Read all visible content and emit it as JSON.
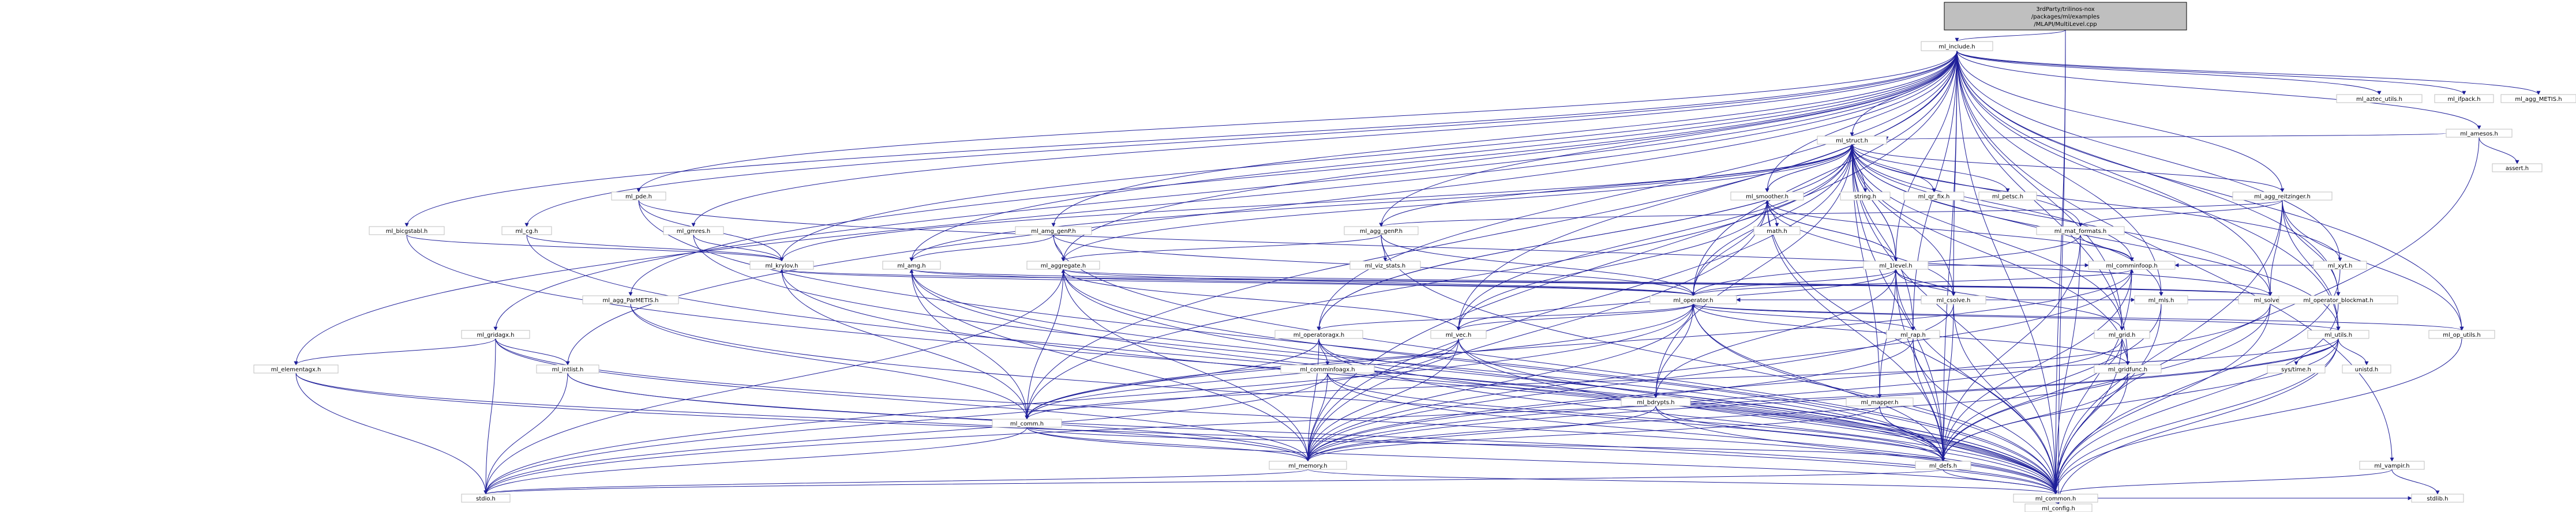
{
  "root": "3rdParty/trilinos-nox/packages/ml/examples/MLAPI/MultiLevel.cpp",
  "colors": {
    "edge": "#1f1f99",
    "node_border": "#bfbfbf",
    "root_fill": "#bfbfbf",
    "background": "#ffffff"
  },
  "nodes": [
    {
      "id": "root",
      "label": "3rdParty/trilinos-nox\n/packages/ml/examples\n/MLAPI/MultiLevel.cpp"
    },
    {
      "id": "ml_include",
      "label": "ml_include.h"
    },
    {
      "id": "ml_config",
      "label": "ml_config.h"
    },
    {
      "id": "ml_common",
      "label": "ml_common.h"
    },
    {
      "id": "ml_defs",
      "label": "ml_defs.h"
    },
    {
      "id": "ml_memory",
      "label": "ml_memory.h"
    },
    {
      "id": "ml_comm",
      "label": "ml_comm.h"
    },
    {
      "id": "stdio",
      "label": "stdio.h"
    },
    {
      "id": "stdlib",
      "label": "stdlib.h"
    },
    {
      "id": "ml_struct",
      "label": "ml_struct.h"
    },
    {
      "id": "ml_operator",
      "label": "ml_operator.h"
    },
    {
      "id": "ml_1level",
      "label": "ml_1level.h"
    },
    {
      "id": "ml_smoother",
      "label": "ml_smoother.h"
    },
    {
      "id": "ml_vec",
      "label": "ml_vec.h"
    },
    {
      "id": "ml_utils",
      "label": "ml_utils.h"
    },
    {
      "id": "ml_csolve",
      "label": "ml_csolve.h"
    },
    {
      "id": "ml_grid",
      "label": "ml_grid.h"
    },
    {
      "id": "ml_gridfunc",
      "label": "ml_gridfunc.h"
    },
    {
      "id": "ml_rap",
      "label": "ml_rap.h"
    },
    {
      "id": "ml_mls",
      "label": "ml_mls.h"
    },
    {
      "id": "ml_solver",
      "label": "ml_solver.h"
    },
    {
      "id": "ml_mapper",
      "label": "ml_mapper.h"
    },
    {
      "id": "ml_bdrypts",
      "label": "ml_bdrypts.h"
    },
    {
      "id": "ml_operatoragx",
      "label": "ml_operatoragx.h"
    },
    {
      "id": "ml_comminfoagx",
      "label": "ml_comminfoagx.h"
    },
    {
      "id": "ml_comminfoop",
      "label": "ml_comminfoop.h"
    },
    {
      "id": "ml_mat_formats",
      "label": "ml_mat_formats.h"
    },
    {
      "id": "ml_amg",
      "label": "ml_amg.h"
    },
    {
      "id": "ml_aggregate",
      "label": "ml_aggregate.h"
    },
    {
      "id": "ml_amg_genP",
      "label": "ml_amg_genP.h"
    },
    {
      "id": "ml_agg_genP",
      "label": "ml_agg_genP.h"
    },
    {
      "id": "ml_vcl_stats",
      "label": "ml_viz_stats.h"
    },
    {
      "id": "ml_krylov",
      "label": "ml_krylov.h"
    },
    {
      "id": "ml_pde",
      "label": "ml_pde.h"
    },
    {
      "id": "ml_cg",
      "label": "ml_cg.h"
    },
    {
      "id": "ml_gmres",
      "label": "ml_gmres.h"
    },
    {
      "id": "ml_bicgstabl",
      "label": "ml_bicgstabl.h"
    },
    {
      "id": "ml_agg_ParMETIS",
      "label": "ml_agg_ParMETIS.h"
    },
    {
      "id": "ml_gridagx",
      "label": "ml_gridagx.h"
    },
    {
      "id": "ml_elementagx",
      "label": "ml_elementagx.h"
    },
    {
      "id": "ml_intlist",
      "label": "ml_intlist.h"
    },
    {
      "id": "string",
      "label": "string.h"
    },
    {
      "id": "math",
      "label": "math.h"
    },
    {
      "id": "ml_qr_fix",
      "label": "ml_qr_fix.h"
    },
    {
      "id": "ml_petsc",
      "label": "ml_petsc.h"
    },
    {
      "id": "ml_xyt",
      "label": "ml_xyt.h"
    },
    {
      "id": "ml_agg_reitzinger",
      "label": "ml_agg_reitzinger.h"
    },
    {
      "id": "ml_operator_blockmat",
      "label": "ml_operator_blockmat.h"
    },
    {
      "id": "ml_op_utils",
      "label": "ml_op_utils.h"
    },
    {
      "id": "ml_aztec_utils",
      "label": "ml_aztec_utils.h"
    },
    {
      "id": "ml_ifpack",
      "label": "ml_ifpack.h"
    },
    {
      "id": "ml_agg_METIS",
      "label": "ml_agg_METIS.h"
    },
    {
      "id": "ml_amesos",
      "label": "ml_amesos.h"
    },
    {
      "id": "assert",
      "label": "assert.h"
    },
    {
      "id": "ml_vampir",
      "label": "ml_vampir.h"
    },
    {
      "id": "sys_time",
      "label": "sys/time.h"
    },
    {
      "id": "unistd",
      "label": "unistd.h"
    }
  ],
  "edges": [
    [
      "root",
      "ml_include"
    ],
    [
      "root",
      "ml_config"
    ],
    [
      "root",
      "ml_common"
    ],
    [
      "ml_include",
      "ml_common"
    ],
    [
      "ml_include",
      "ml_defs"
    ],
    [
      "ml_include",
      "ml_memory"
    ],
    [
      "ml_include",
      "ml_comm"
    ],
    [
      "ml_include",
      "ml_struct"
    ],
    [
      "ml_include",
      "ml_operator"
    ],
    [
      "ml_include",
      "ml_1level"
    ],
    [
      "ml_include",
      "ml_vec"
    ],
    [
      "ml_include",
      "ml_utils"
    ],
    [
      "ml_include",
      "ml_solver"
    ],
    [
      "ml_include",
      "ml_amg"
    ],
    [
      "ml_include",
      "ml_aggregate"
    ],
    [
      "ml_include",
      "ml_amg_genP"
    ],
    [
      "ml_include",
      "ml_agg_genP"
    ],
    [
      "ml_include",
      "ml_krylov"
    ],
    [
      "ml_include",
      "ml_pde"
    ],
    [
      "ml_include",
      "ml_cg"
    ],
    [
      "ml_include",
      "ml_gmres"
    ],
    [
      "ml_include",
      "ml_bicgstabl"
    ],
    [
      "ml_include",
      "ml_agg_ParMETIS"
    ],
    [
      "ml_include",
      "ml_gridagx"
    ],
    [
      "ml_include",
      "ml_elementagx"
    ],
    [
      "ml_include",
      "ml_intlist"
    ],
    [
      "ml_include",
      "ml_grid"
    ],
    [
      "ml_include",
      "ml_gridfunc"
    ],
    [
      "ml_include",
      "ml_operatoragx"
    ],
    [
      "ml_include",
      "ml_xyt"
    ],
    [
      "ml_include",
      "ml_agg_reitzinger"
    ],
    [
      "ml_include",
      "ml_operator_blockmat"
    ],
    [
      "ml_include",
      "ml_op_utils"
    ],
    [
      "ml_include",
      "ml_aztec_utils"
    ],
    [
      "ml_include",
      "ml_ifpack"
    ],
    [
      "ml_include",
      "ml_agg_METIS"
    ],
    [
      "ml_include",
      "ml_amesos"
    ],
    [
      "ml_include",
      "ml_vampir"
    ],
    [
      "ml_include",
      "ml_mls"
    ],
    [
      "ml_include",
      "ml_rap"
    ],
    [
      "ml_include",
      "ml_smoother"
    ],
    [
      "ml_include",
      "ml_csolve"
    ],
    [
      "ml_common",
      "ml_config"
    ],
    [
      "ml_defs",
      "ml_common"
    ],
    [
      "ml_memory",
      "ml_common"
    ],
    [
      "ml_memory",
      "stdio"
    ],
    [
      "ml_comm",
      "ml_common"
    ],
    [
      "ml_comm",
      "ml_memory"
    ],
    [
      "ml_comm",
      "stdio"
    ],
    [
      "ml_comm",
      "ml_defs"
    ],
    [
      "ml_struct",
      "ml_common"
    ],
    [
      "ml_struct",
      "ml_defs"
    ],
    [
      "ml_struct",
      "ml_memory"
    ],
    [
      "ml_struct",
      "ml_comm"
    ],
    [
      "ml_struct",
      "ml_operator"
    ],
    [
      "ml_struct",
      "ml_1level"
    ],
    [
      "ml_struct",
      "ml_smoother"
    ],
    [
      "ml_struct",
      "ml_vec"
    ],
    [
      "ml_struct",
      "ml_utils"
    ],
    [
      "ml_struct",
      "ml_csolve"
    ],
    [
      "ml_struct",
      "ml_grid"
    ],
    [
      "ml_struct",
      "ml_gridfunc"
    ],
    [
      "ml_struct",
      "ml_rap"
    ],
    [
      "ml_struct",
      "ml_mls"
    ],
    [
      "ml_struct",
      "ml_solver"
    ],
    [
      "ml_struct",
      "ml_mapper"
    ],
    [
      "ml_struct",
      "ml_bdrypts"
    ],
    [
      "ml_struct",
      "ml_operatoragx"
    ],
    [
      "ml_struct",
      "ml_comminfoop"
    ],
    [
      "ml_struct",
      "ml_mat_formats"
    ],
    [
      "ml_struct",
      "string"
    ],
    [
      "ml_struct",
      "ml_qr_fix"
    ],
    [
      "ml_struct",
      "ml_petsc"
    ],
    [
      "ml_struct",
      "ml_krylov"
    ],
    [
      "ml_struct",
      "ml_amg"
    ],
    [
      "ml_struct",
      "ml_aggregate"
    ],
    [
      "ml_struct",
      "ml_agg_genP"
    ],
    [
      "ml_operator",
      "ml_common"
    ],
    [
      "ml_operator",
      "ml_defs"
    ],
    [
      "ml_operator",
      "ml_memory"
    ],
    [
      "ml_operator",
      "ml_comm"
    ],
    [
      "ml_operator",
      "ml_vec"
    ],
    [
      "ml_operator",
      "ml_bdrypts"
    ],
    [
      "ml_operator",
      "ml_operatoragx"
    ],
    [
      "ml_operator",
      "ml_comminfoop"
    ],
    [
      "ml_operator",
      "ml_gridfunc"
    ],
    [
      "ml_operator",
      "ml_mls"
    ],
    [
      "ml_operator",
      "ml_utils"
    ],
    [
      "ml_operator",
      "ml_op_utils"
    ],
    [
      "ml_operator",
      "stdio"
    ],
    [
      "ml_1level",
      "ml_common"
    ],
    [
      "ml_1level",
      "ml_defs"
    ],
    [
      "ml_1level",
      "ml_operator"
    ],
    [
      "ml_1level",
      "ml_smoother"
    ],
    [
      "ml_1level",
      "ml_csolve"
    ],
    [
      "ml_1level",
      "ml_grid"
    ],
    [
      "ml_1level",
      "ml_mapper"
    ],
    [
      "ml_1level",
      "ml_bdrypts"
    ],
    [
      "ml_1level",
      "ml_vec"
    ],
    [
      "ml_1level",
      "ml_comminfoop"
    ],
    [
      "ml_1level",
      "ml_struct"
    ],
    [
      "ml_smoother",
      "ml_common"
    ],
    [
      "ml_smoother",
      "ml_defs"
    ],
    [
      "ml_smoother",
      "ml_memory"
    ],
    [
      "ml_smoother",
      "ml_1level"
    ],
    [
      "ml_smoother",
      "ml_operator"
    ],
    [
      "ml_smoother",
      "ml_comminfoop"
    ],
    [
      "ml_smoother",
      "ml_csolve"
    ],
    [
      "ml_smoother",
      "math"
    ],
    [
      "ml_smoother",
      "ml_struct"
    ],
    [
      "ml_smoother",
      "ml_vec"
    ],
    [
      "ml_vec",
      "ml_common"
    ],
    [
      "ml_vec",
      "ml_memory"
    ],
    [
      "ml_vec",
      "ml_defs"
    ],
    [
      "ml_vec",
      "ml_comm"
    ],
    [
      "ml_vec",
      "stdio"
    ],
    [
      "ml_utils",
      "ml_common"
    ],
    [
      "ml_utils",
      "ml_defs"
    ],
    [
      "ml_utils",
      "ml_memory"
    ],
    [
      "ml_utils",
      "ml_comm"
    ],
    [
      "ml_utils",
      "sys_time"
    ],
    [
      "ml_utils",
      "unistd"
    ],
    [
      "ml_utils",
      "stdio"
    ],
    [
      "ml_utils",
      "ml_config"
    ],
    [
      "ml_csolve",
      "ml_common"
    ],
    [
      "ml_csolve",
      "ml_defs"
    ],
    [
      "ml_csolve",
      "ml_memory"
    ],
    [
      "ml_csolve",
      "ml_1level"
    ],
    [
      "ml_grid",
      "ml_common"
    ],
    [
      "ml_grid",
      "ml_defs"
    ],
    [
      "ml_grid",
      "ml_memory"
    ],
    [
      "ml_grid",
      "ml_gridfunc"
    ],
    [
      "ml_gridfunc",
      "ml_common"
    ],
    [
      "ml_gridfunc",
      "ml_defs"
    ],
    [
      "ml_gridfunc",
      "ml_memory"
    ],
    [
      "ml_rap",
      "ml_common"
    ],
    [
      "ml_rap",
      "ml_defs"
    ],
    [
      "ml_rap",
      "ml_memory"
    ],
    [
      "ml_rap",
      "ml_operator"
    ],
    [
      "ml_mls",
      "ml_common"
    ],
    [
      "ml_mls",
      "ml_defs"
    ],
    [
      "ml_mls",
      "ml_operator"
    ],
    [
      "ml_solver",
      "ml_common"
    ],
    [
      "ml_solver",
      "ml_defs"
    ],
    [
      "ml_solver",
      "ml_memory"
    ],
    [
      "ml_mapper",
      "ml_common"
    ],
    [
      "ml_mapper",
      "ml_defs"
    ],
    [
      "ml_mapper",
      "ml_memory"
    ],
    [
      "ml_bdrypts",
      "ml_common"
    ],
    [
      "ml_bdrypts",
      "ml_defs"
    ],
    [
      "ml_bdrypts",
      "ml_memory"
    ],
    [
      "ml_operatoragx",
      "ml_common"
    ],
    [
      "ml_operatoragx",
      "ml_defs"
    ],
    [
      "ml_operatoragx",
      "ml_memory"
    ],
    [
      "ml_operatoragx",
      "ml_comm"
    ],
    [
      "ml_operatoragx",
      "ml_comminfoagx"
    ],
    [
      "ml_operatoragx",
      "ml_struct"
    ],
    [
      "ml_comminfoagx",
      "ml_common"
    ],
    [
      "ml_comminfoagx",
      "ml_defs"
    ],
    [
      "ml_comminfoagx",
      "ml_memory"
    ],
    [
      "ml_comminfoagx",
      "stdio"
    ],
    [
      "ml_comminfoop",
      "ml_common"
    ],
    [
      "ml_comminfoop",
      "ml_defs"
    ],
    [
      "ml_comminfoop",
      "ml_memory"
    ],
    [
      "ml_comminfoop",
      "ml_comm"
    ],
    [
      "ml_mat_formats",
      "ml_common"
    ],
    [
      "ml_mat_formats",
      "ml_defs"
    ],
    [
      "ml_mat_formats",
      "ml_operator"
    ],
    [
      "ml_mat_formats",
      "ml_comminfoop"
    ],
    [
      "ml_amg",
      "ml_common"
    ],
    [
      "ml_amg",
      "ml_defs"
    ],
    [
      "ml_amg",
      "ml_memory"
    ],
    [
      "ml_amg",
      "ml_comm"
    ],
    [
      "ml_amg",
      "ml_operator"
    ],
    [
      "ml_aggregate",
      "ml_common"
    ],
    [
      "ml_aggregate",
      "ml_defs"
    ],
    [
      "ml_aggregate",
      "ml_memory"
    ],
    [
      "ml_aggregate",
      "ml_comm"
    ],
    [
      "ml_aggregate",
      "ml_operator"
    ],
    [
      "ml_aggregate",
      "ml_vec"
    ],
    [
      "ml_aggregate",
      "stdio"
    ],
    [
      "ml_amg_genP",
      "ml_common"
    ],
    [
      "ml_amg_genP",
      "ml_amg"
    ],
    [
      "ml_amg_genP",
      "ml_operator"
    ],
    [
      "ml_amg_genP",
      "ml_aggregate"
    ],
    [
      "ml_agg_genP",
      "ml_common"
    ],
    [
      "ml_agg_genP",
      "ml_aggregate"
    ],
    [
      "ml_agg_genP",
      "ml_operator"
    ],
    [
      "ml_agg_genP",
      "ml_vcl_stats"
    ],
    [
      "ml_krylov",
      "ml_common"
    ],
    [
      "ml_krylov",
      "ml_comm"
    ],
    [
      "ml_krylov",
      "ml_operator"
    ],
    [
      "ml_pde",
      "ml_common"
    ],
    [
      "ml_pde",
      "ml_krylov"
    ],
    [
      "ml_pde",
      "ml_solver"
    ],
    [
      "ml_cg",
      "ml_common"
    ],
    [
      "ml_cg",
      "ml_krylov"
    ],
    [
      "ml_gmres",
      "ml_common"
    ],
    [
      "ml_gmres",
      "ml_krylov"
    ],
    [
      "ml_bicgstabl",
      "ml_common"
    ],
    [
      "ml_bicgstabl",
      "ml_krylov"
    ],
    [
      "ml_solver",
      "ml_amg"
    ],
    [
      "ml_solver",
      "ml_aggregate"
    ],
    [
      "ml_solver",
      "ml_krylov"
    ],
    [
      "ml_agg_ParMETIS",
      "ml_common"
    ],
    [
      "ml_agg_ParMETIS",
      "ml_comm"
    ],
    [
      "ml_gridagx",
      "ml_common"
    ],
    [
      "ml_gridagx",
      "ml_memory"
    ],
    [
      "ml_gridagx",
      "ml_elementagx"
    ],
    [
      "ml_gridagx",
      "ml_intlist"
    ],
    [
      "ml_gridagx",
      "stdio"
    ],
    [
      "ml_elementagx",
      "ml_common"
    ],
    [
      "ml_elementagx",
      "ml_memory"
    ],
    [
      "ml_elementagx",
      "stdio"
    ],
    [
      "ml_intlist",
      "ml_common"
    ],
    [
      "ml_intlist",
      "ml_memory"
    ],
    [
      "ml_intlist",
      "stdio"
    ],
    [
      "ml_xyt",
      "ml_common"
    ],
    [
      "ml_xyt",
      "ml_comminfoop"
    ],
    [
      "ml_xyt",
      "ml_struct"
    ],
    [
      "ml_agg_reitzinger",
      "ml_common"
    ],
    [
      "ml_agg_reitzinger",
      "ml_struct"
    ],
    [
      "ml_agg_reitzinger",
      "ml_agg_genP"
    ],
    [
      "ml_agg_reitzinger",
      "ml_operator_blockmat"
    ],
    [
      "ml_agg_reitzinger",
      "ml_op_utils"
    ],
    [
      "ml_agg_reitzinger",
      "ml_solver"
    ],
    [
      "ml_agg_reitzinger",
      "ml_utils"
    ],
    [
      "ml_agg_reitzinger",
      "ml_mat_formats"
    ],
    [
      "ml_operator_blockmat",
      "ml_common"
    ],
    [
      "ml_operator_blockmat",
      "ml_operator"
    ],
    [
      "ml_op_utils",
      "ml_common"
    ],
    [
      "ml_amesos",
      "ml_common"
    ],
    [
      "ml_amesos",
      "assert"
    ],
    [
      "ml_amesos",
      "ml_struct"
    ],
    [
      "ml_vampir",
      "ml_common"
    ],
    [
      "ml_vampir",
      "stdlib"
    ],
    [
      "ml_defs",
      "stdio"
    ],
    [
      "ml_common",
      "stdlib"
    ]
  ]
}
